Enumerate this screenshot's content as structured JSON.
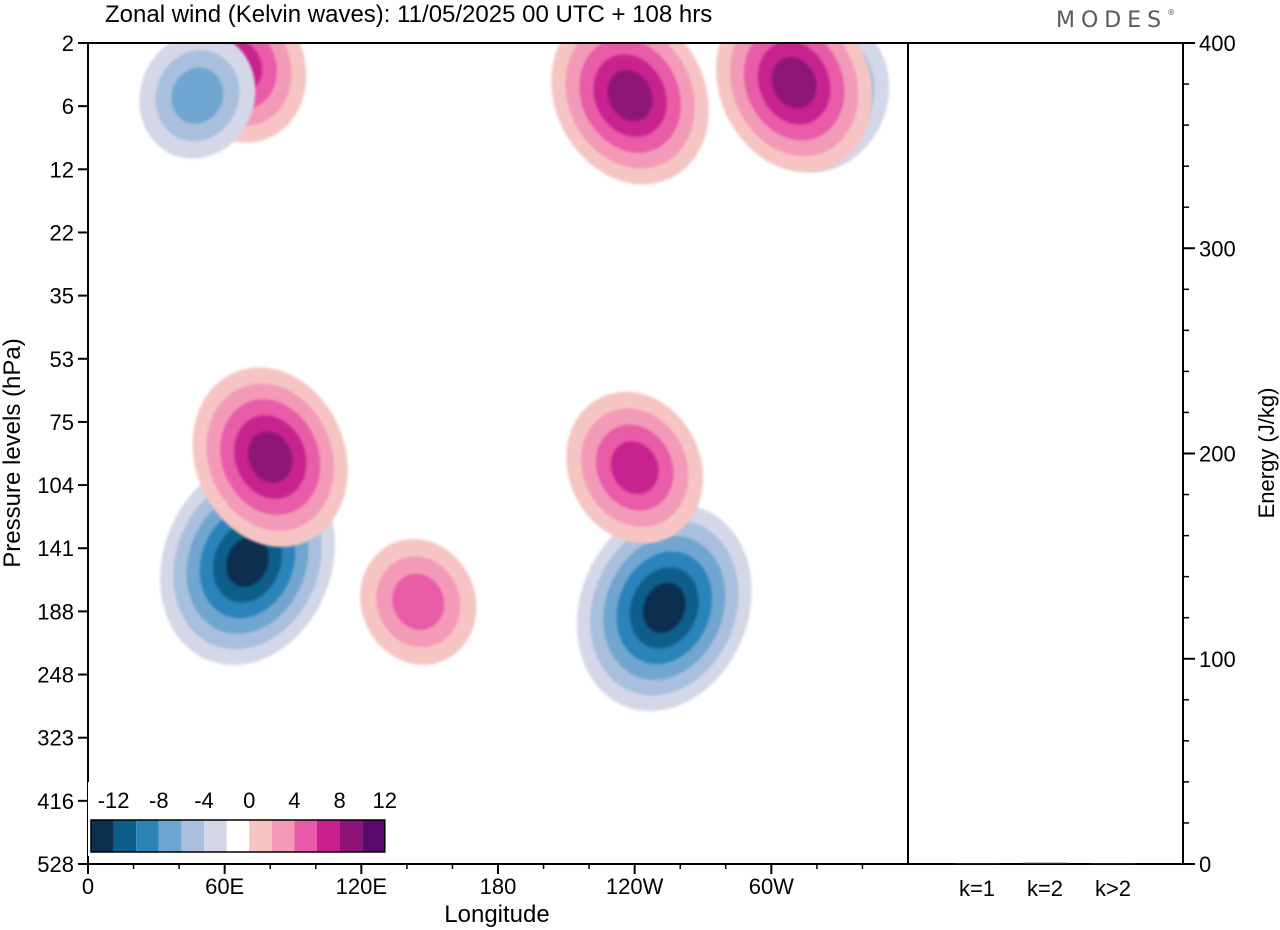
{
  "title": "Zonal wind (Kelvin waves):  11/05/2025  00 UTC  + 108 hrs",
  "brand": "MODES",
  "chart_data": [
    {
      "type": "heatmap",
      "name": "zonal-wind-hovmoller",
      "xlabel": "Longitude",
      "ylabel": "Pressure levels (hPa)",
      "x_ticks": [
        "0",
        "60E",
        "120E",
        "180",
        "120W",
        "60W"
      ],
      "x_tick_values": [
        0,
        60,
        120,
        180,
        240,
        300
      ],
      "xlim": [
        0,
        360
      ],
      "y_ticks": [
        "2",
        "6",
        "12",
        "22",
        "35",
        "53",
        "75",
        "104",
        "141",
        "188",
        "248",
        "323",
        "416",
        "528"
      ],
      "y_scale": "log-pressure",
      "colorbar": {
        "labels": [
          "-12",
          "-8",
          "-4",
          "0",
          "4",
          "8",
          "12"
        ],
        "levels": [
          -12,
          -10,
          -8,
          -6,
          -4,
          -2,
          2,
          4,
          6,
          8,
          10,
          12
        ],
        "colors": [
          "#0b2f4f",
          "#0d5f8a",
          "#2b83ba",
          "#6fa6cf",
          "#a8bfdd",
          "#d4d7e8",
          "#ffffff",
          "#f6c5c3",
          "#f39ab8",
          "#e85ba8",
          "#c8208f",
          "#8e1277",
          "#5a0a6a"
        ]
      },
      "features": [
        {
          "longitude": 70,
          "pressure": 150,
          "value": -12
        },
        {
          "longitude": 253,
          "pressure": 185,
          "value": -11
        },
        {
          "longitude": 66,
          "pressure": 3,
          "value": 8
        },
        {
          "longitude": 238,
          "pressure": 5,
          "value": 9
        },
        {
          "longitude": 322,
          "pressure": 5,
          "value": -7
        },
        {
          "longitude": 310,
          "pressure": 4,
          "value": 9
        },
        {
          "longitude": 80,
          "pressure": 90,
          "value": 10
        },
        {
          "longitude": 240,
          "pressure": 95,
          "value": 7
        },
        {
          "longitude": 48,
          "pressure": 5,
          "value": -6
        },
        {
          "longitude": 145,
          "pressure": 180,
          "value": 5
        }
      ]
    },
    {
      "type": "bar",
      "name": "energy",
      "categories": [
        "k=1",
        "k=2",
        "k>2"
      ],
      "values": [
        0.4,
        0.6,
        0.4
      ],
      "ylabel": "Energy (J/kg)",
      "ylim": [
        0,
        400
      ],
      "y_ticks": [
        "0",
        "100",
        "200",
        "300",
        "400"
      ]
    }
  ]
}
